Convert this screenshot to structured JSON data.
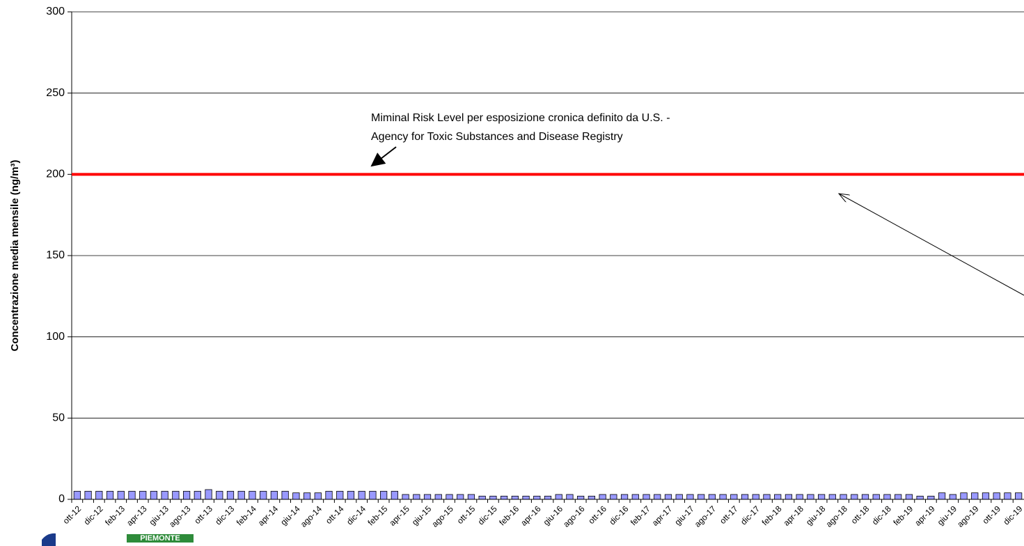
{
  "chart_data": {
    "type": "bar",
    "y_label": "Concentrazione media mensile (ng/m³)",
    "annotation_lines": [
      "Miminal Risk Level per esposizione cronica definito da U.S. -",
      "Agency for Toxic Substances and Disease Registry"
    ],
    "reference_line": {
      "value": 200,
      "color": "#ff0000"
    },
    "categories": [
      "ott-12",
      null,
      "dic-12",
      null,
      "feb-13",
      null,
      "apr-13",
      null,
      "giu-13",
      null,
      "ago-13",
      null,
      "ott-13",
      null,
      "dic-13",
      null,
      "feb-14",
      null,
      "apr-14",
      null,
      "giu-14",
      null,
      "ago-14",
      null,
      "ott-14",
      null,
      "dic-14",
      null,
      "feb-15",
      null,
      "apr-15",
      null,
      "giu-15",
      null,
      "ago-15",
      null,
      "ott-15",
      null,
      "dic-15",
      null,
      "feb-16",
      null,
      "apr-16",
      null,
      "giu-16",
      null,
      "ago-16",
      null,
      "ott-16",
      null,
      "dic-16",
      null,
      "feb-17",
      null,
      "apr-17",
      null,
      "giu-17",
      null,
      "ago-17",
      null,
      "ott-17",
      null,
      "dic-17",
      null,
      "feb-18",
      null,
      "apr-18",
      null,
      "giu-18",
      null,
      "ago-18",
      null,
      "ott-18",
      null,
      "dic-18",
      null,
      "feb-19",
      null,
      "apr-19",
      null,
      "giu-19",
      null,
      "ago-19",
      null,
      "ott-19",
      null,
      "dic-19"
    ],
    "values": [
      5,
      5,
      5,
      5,
      5,
      5,
      5,
      5,
      5,
      5,
      5,
      5,
      6,
      5,
      5,
      5,
      5,
      5,
      5,
      5,
      4,
      4,
      4,
      5,
      5,
      5,
      5,
      5,
      5,
      5,
      3,
      3,
      3,
      3,
      3,
      3,
      3,
      2,
      2,
      2,
      2,
      2,
      2,
      2,
      3,
      3,
      2,
      2,
      3,
      3,
      3,
      3,
      3,
      3,
      3,
      3,
      3,
      3,
      3,
      3,
      3,
      3,
      3,
      3,
      3,
      3,
      3,
      3,
      3,
      3,
      3,
      3,
      3,
      3,
      3,
      3,
      3,
      2,
      2,
      4,
      3,
      4,
      4,
      4,
      4,
      4,
      4
    ],
    "color": "#9999ff",
    "ylim": [
      0,
      300
    ],
    "yticks": [
      0,
      50,
      100,
      150,
      200,
      250,
      300
    ],
    "grid": true
  },
  "logo": "PIEMONTE"
}
